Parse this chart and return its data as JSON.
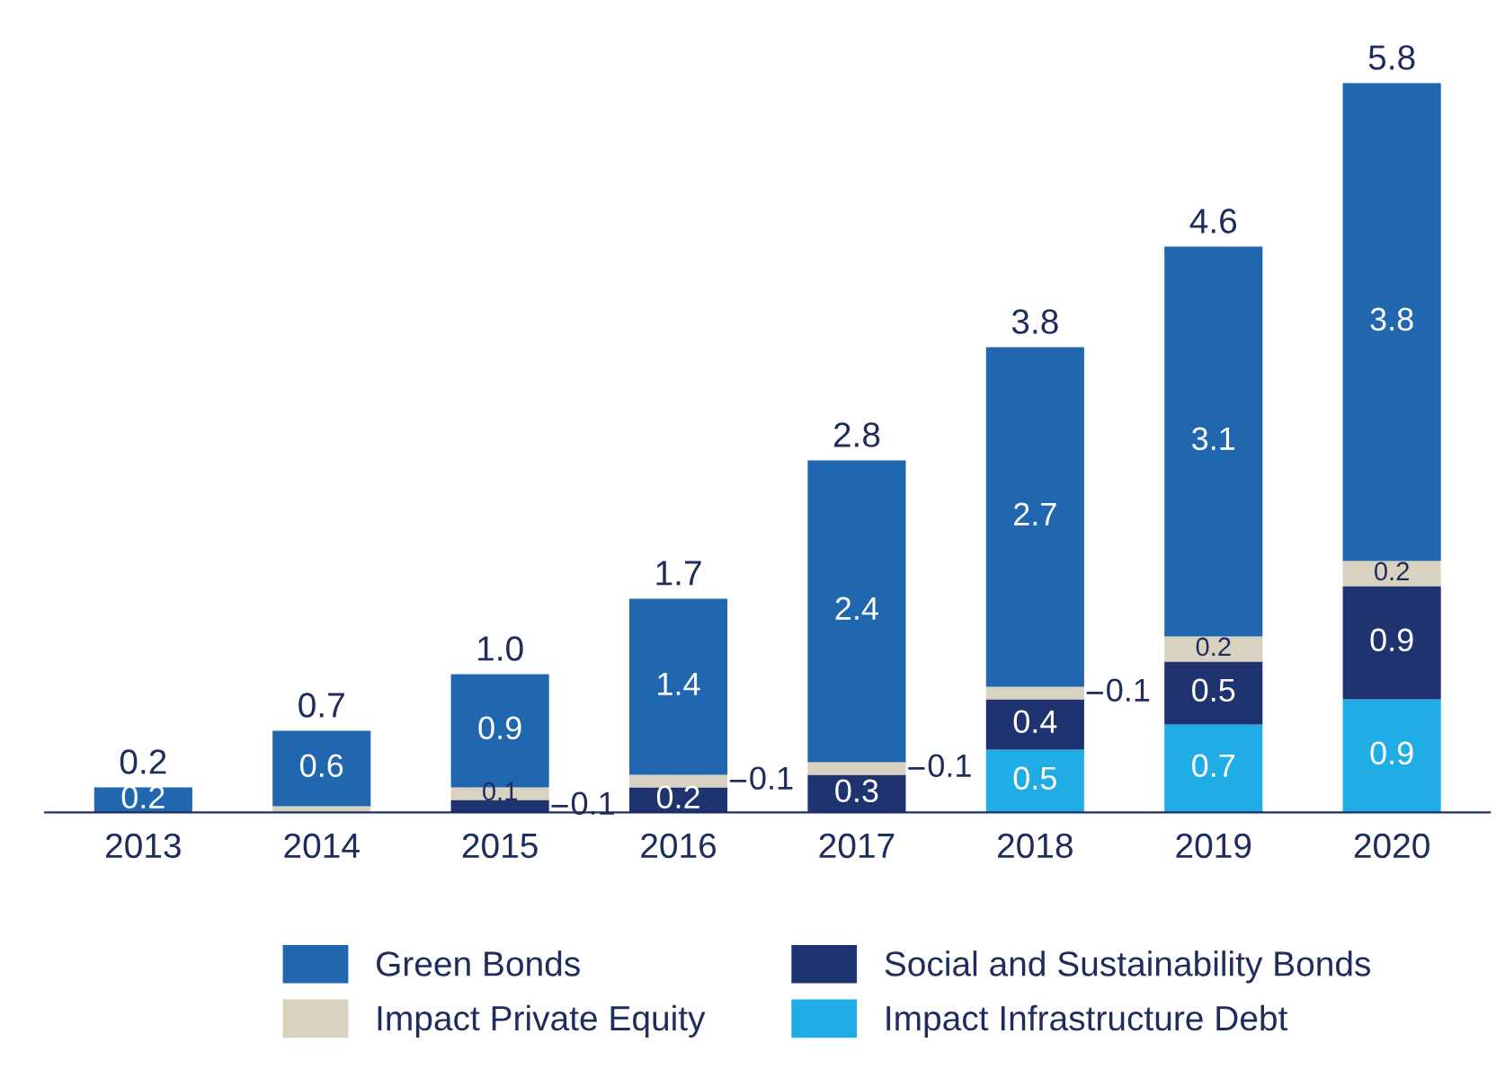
{
  "chart_data": {
    "type": "bar",
    "stacked": true,
    "categories": [
      "2013",
      "2014",
      "2015",
      "2016",
      "2017",
      "2018",
      "2019",
      "2020"
    ],
    "series": [
      {
        "name": "Impact Infrastructure Debt",
        "color": "#20ade6",
        "values": [
          null,
          null,
          null,
          null,
          null,
          0.5,
          0.7,
          0.9
        ],
        "value_labels": [
          null,
          null,
          null,
          null,
          null,
          "0.5",
          "0.7",
          "0.9"
        ]
      },
      {
        "name": "Social and Sustainability Bonds",
        "color": "#1f3370",
        "values": [
          null,
          null,
          0.1,
          0.2,
          0.3,
          0.4,
          0.5,
          0.9
        ],
        "value_labels": [
          null,
          null,
          "0.1",
          "0.2",
          "0.3",
          "0.4",
          "0.5",
          "0.9"
        ]
      },
      {
        "name": "Impact Private Equity",
        "color": "#d9d2c0",
        "values": [
          null,
          0.05,
          0.1,
          0.1,
          0.1,
          0.1,
          0.2,
          0.2
        ],
        "value_labels": [
          null,
          null,
          "0.1",
          "0.1",
          "0.1",
          "0.1",
          "0.2",
          "0.2"
        ]
      },
      {
        "name": "Green Bonds",
        "color": "#2167b0",
        "values": [
          0.2,
          0.6,
          0.9,
          1.4,
          2.4,
          2.7,
          3.1,
          3.8
        ],
        "value_labels": [
          "0.2",
          "0.6",
          "0.9",
          "1.4",
          "2.4",
          "2.7",
          "3.1",
          "3.8"
        ]
      }
    ],
    "totals": [
      "0.2",
      "0.7",
      "1.0",
      "1.7",
      "2.8",
      "3.8",
      "4.6",
      "5.8"
    ],
    "tick_labels": "x",
    "grid": false,
    "legend": "bottom"
  }
}
